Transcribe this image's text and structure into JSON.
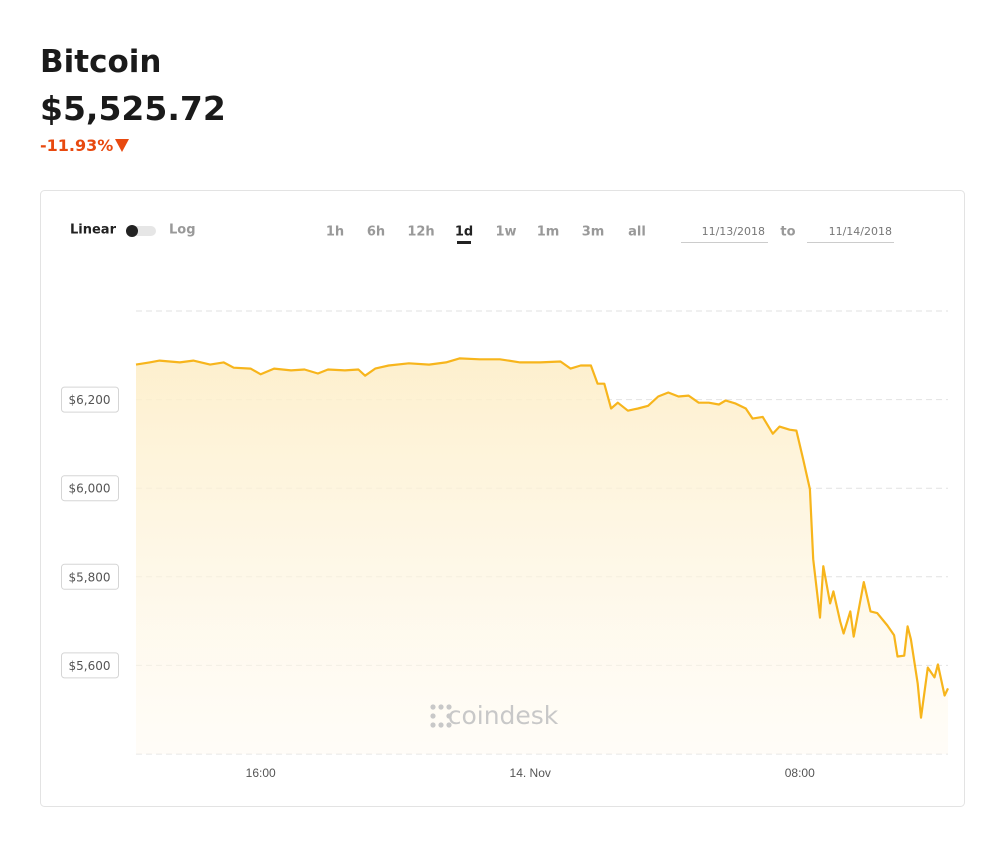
{
  "header": {
    "title": "Bitcoin",
    "price": "$5,525.72",
    "change": "-11.93%"
  },
  "controls": {
    "scale_linear": "Linear",
    "scale_log": "Log",
    "ranges": [
      "1h",
      "6h",
      "12h",
      "1d",
      "1w",
      "1m",
      "3m",
      "all"
    ],
    "active_range": 3,
    "date_from": "11/13/2018",
    "to": "to",
    "date_to": "11/14/2018"
  },
  "watermark": "coindesk",
  "chart_data": {
    "type": "line",
    "color": "#f7b51c",
    "grid": true,
    "x": [
      12.3,
      12.7,
      13.0,
      13.6,
      14.0,
      14.5,
      14.9,
      15.2,
      15.7,
      16.0,
      16.4,
      16.9,
      17.3,
      17.7,
      18.0,
      18.5,
      18.9,
      19.1,
      19.4,
      19.8,
      20.4,
      21.0,
      21.5,
      21.9,
      22.5,
      23.1,
      23.7,
      24.3,
      24.9,
      25.2,
      25.5,
      25.8,
      26.0,
      26.2,
      26.4,
      26.6,
      26.9,
      27.2,
      27.5,
      27.8,
      28.1,
      28.4,
      28.7,
      29.0,
      29.3,
      29.6,
      29.8,
      30.1,
      30.4,
      30.6,
      30.9,
      31.2,
      31.4,
      31.7,
      31.9,
      32.1,
      32.3,
      32.4,
      32.6,
      32.7,
      32.9,
      33.0,
      33.2,
      33.3,
      33.5,
      33.6,
      33.9,
      34.1,
      34.3,
      34.6,
      34.8,
      34.9,
      35.1,
      35.2,
      35.3,
      35.5,
      35.6,
      35.8,
      36.0,
      36.1,
      36.3,
      36.4
    ],
    "values": [
      6279,
      6284,
      6288,
      6284,
      6288,
      6279,
      6284,
      6272,
      6270,
      6257,
      6270,
      6266,
      6268,
      6259,
      6268,
      6266,
      6268,
      6254,
      6270,
      6277,
      6282,
      6279,
      6284,
      6293,
      6291,
      6291,
      6284,
      6284,
      6286,
      6270,
      6277,
      6277,
      6236,
      6236,
      6180,
      6193,
      6175,
      6180,
      6186,
      6207,
      6216,
      6207,
      6209,
      6193,
      6193,
      6189,
      6198,
      6191,
      6180,
      6157,
      6161,
      6123,
      6139,
      6132,
      6130,
      6066,
      5998,
      5840,
      5708,
      5824,
      5740,
      5767,
      5699,
      5672,
      5722,
      5665,
      5788,
      5722,
      5718,
      5690,
      5668,
      5620,
      5622,
      5688,
      5659,
      5559,
      5482,
      5595,
      5573,
      5602,
      5532,
      5548
    ],
    "xlim": [
      12.3,
      36.4
    ],
    "xticks": [
      {
        "value": 16,
        "label": "16:00"
      },
      {
        "value": 24,
        "label": "14. Nov"
      },
      {
        "value": 32,
        "label": "08:00"
      }
    ],
    "ylim": [
      5400,
      6400
    ],
    "yticks": [
      {
        "value": 5600,
        "label": "$5,600"
      },
      {
        "value": 5800,
        "label": "$5,800"
      },
      {
        "value": 6000,
        "label": "$6,000"
      },
      {
        "value": 6200,
        "label": "$6,200"
      }
    ]
  }
}
